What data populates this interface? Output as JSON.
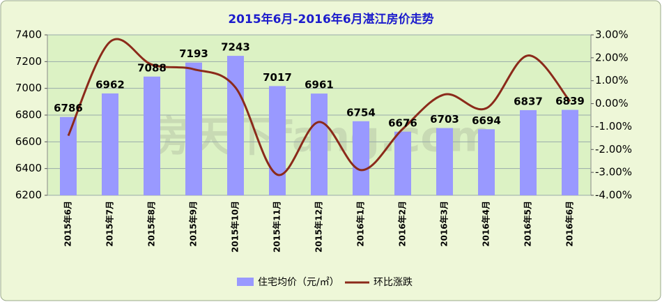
{
  "chart_data": {
    "type": "bar-line",
    "title": "2015年6月-2016年6月湛江房价走势",
    "watermark": "房天下fang.com",
    "categories": [
      "2015年6月",
      "2015年7月",
      "2015年8月",
      "2015年9月",
      "2015年10月",
      "2015年11月",
      "2015年12月",
      "2016年1月",
      "2016年2月",
      "2016年3月",
      "2016年4月",
      "2016年5月",
      "2016年6月"
    ],
    "series": [
      {
        "name": "住宅均价（元/㎡）",
        "type": "bar",
        "color": "#9999ff",
        "values": [
          6786,
          6962,
          7088,
          7193,
          7243,
          7017,
          6961,
          6754,
          6676,
          6703,
          6694,
          6837,
          6839
        ]
      },
      {
        "name": "环比涨跌",
        "type": "line",
        "axis": "y2",
        "color": "#8b2a1a",
        "values": [
          -1.4,
          2.7,
          1.7,
          1.5,
          0.7,
          -3.1,
          -0.8,
          -2.9,
          -1.1,
          0.4,
          -0.2,
          2.1,
          0.1
        ]
      }
    ],
    "ylim": [
      6200,
      7400
    ],
    "yticks": [
      6200,
      6400,
      6600,
      6800,
      7000,
      7200,
      7400
    ],
    "y2lim": [
      -4,
      3
    ],
    "y2ticks": [
      {
        "value": -4,
        "label": "-4.00%"
      },
      {
        "value": -3,
        "label": "-3.00%"
      },
      {
        "value": -2,
        "label": "-2.00%"
      },
      {
        "value": -1,
        "label": "-1.00%"
      },
      {
        "value": 0,
        "label": "0.00%"
      },
      {
        "value": 1,
        "label": "1.00%"
      },
      {
        "value": 2,
        "label": "2.00%"
      },
      {
        "value": 3,
        "label": "3.00%"
      }
    ],
    "grid": true
  }
}
